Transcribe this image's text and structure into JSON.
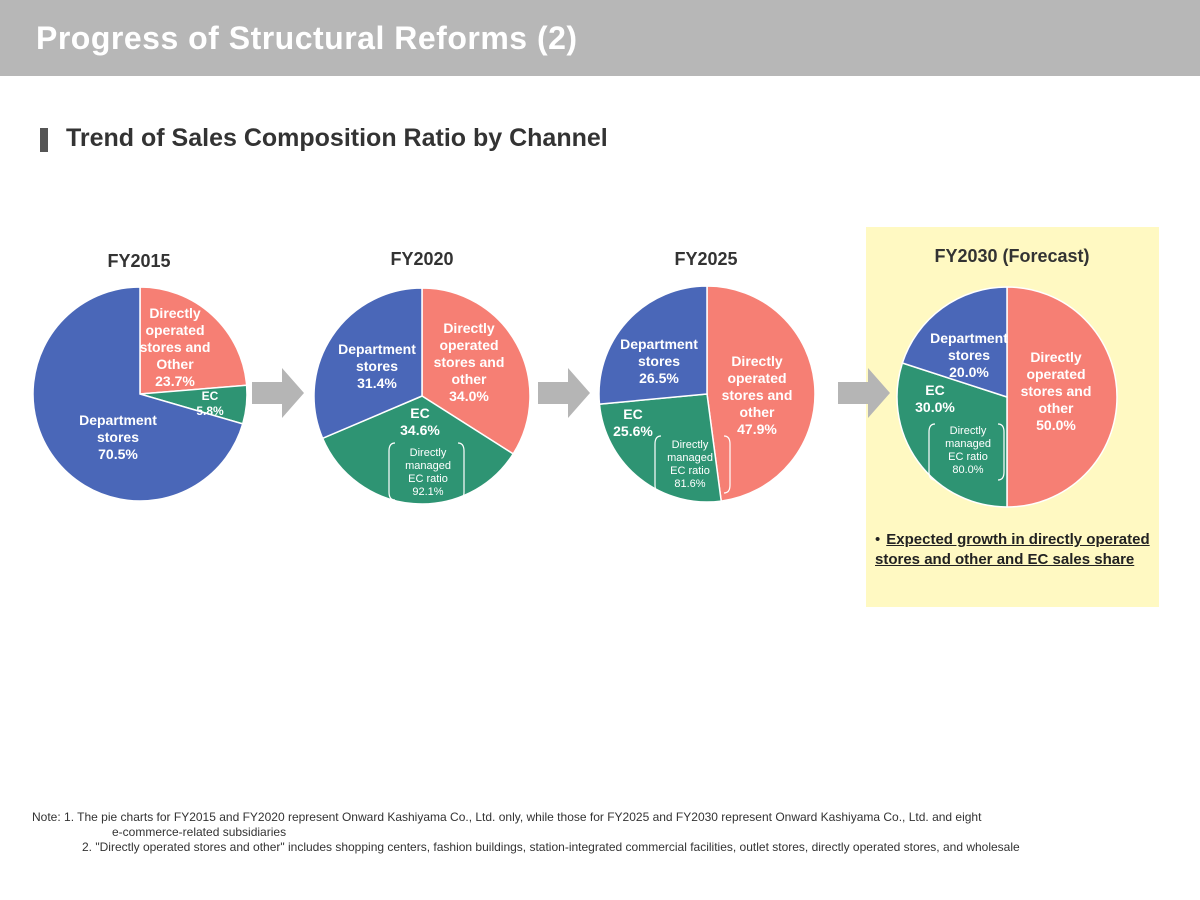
{
  "header": {
    "title": "Progress of Structural Reforms (2)",
    "section_title": "Trend of Sales Composition Ratio by Channel"
  },
  "colors": {
    "department": "#4a67b8",
    "directly": "#f67f74",
    "ec": "#2e9473",
    "arrow": "#b5b5b5",
    "forecast_bg": "#fff9c2"
  },
  "chart_data": [
    {
      "type": "pie",
      "title": "FY2015",
      "slices": [
        {
          "name": "Directly operated stores and Other",
          "value": 23.7,
          "label": "23.7%"
        },
        {
          "name": "EC",
          "value": 5.8,
          "label": "5.8%"
        },
        {
          "name": "Department stores",
          "value": 70.5,
          "label": "70.5%"
        }
      ]
    },
    {
      "type": "pie",
      "title": "FY2020",
      "slices": [
        {
          "name": "Directly operated stores and other",
          "value": 34.0,
          "label": "34.0%"
        },
        {
          "name": "EC",
          "value": 34.6,
          "label": "34.6%"
        },
        {
          "name": "Department stores",
          "value": 31.4,
          "label": "31.4%"
        }
      ],
      "note": {
        "text": "Directly managed EC ratio",
        "value": "92.1%"
      }
    },
    {
      "type": "pie",
      "title": "FY2025",
      "slices": [
        {
          "name": "Directly operated stores and other",
          "value": 47.9,
          "label": "47.9%"
        },
        {
          "name": "EC",
          "value": 25.6,
          "label": "25.6%"
        },
        {
          "name": "Department stores",
          "value": 26.5,
          "label": "26.5%"
        }
      ],
      "note": {
        "text": "Directly managed EC ratio",
        "value": "81.6%"
      }
    },
    {
      "type": "pie",
      "title": "FY2030 (Forecast)",
      "slices": [
        {
          "name": "Directly operated stores and other",
          "value": 50.0,
          "label": "50.0%"
        },
        {
          "name": "EC",
          "value": 30.0,
          "label": "30.0%"
        },
        {
          "name": "Department stores",
          "value": 20.0,
          "label": "20.0%"
        }
      ],
      "note": {
        "text": "Directly managed EC ratio",
        "value": "80.0%"
      }
    }
  ],
  "forecast_bullet": "Expected growth in directly operated stores and other and EC sales share",
  "notes": {
    "note1_prefix": "Note: 1.",
    "note1": "The pie charts for FY2015 and FY2020 represent Onward Kashiyama Co., Ltd. only, while those for FY2025 and FY2030 represent Onward Kashiyama Co., Ltd. and eight",
    "note1_cont": "e-commerce-related subsidiaries",
    "note2_prefix": "2.",
    "note2": "\"Directly operated stores and other\" includes shopping centers, fashion buildings, station-integrated commercial facilities, outlet stores, directly operated stores, and wholesale"
  }
}
